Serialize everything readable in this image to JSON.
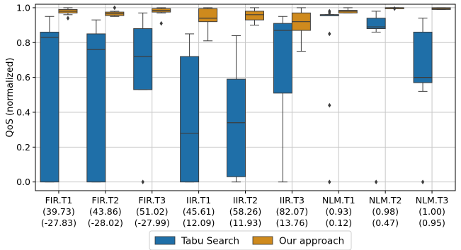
{
  "chart_data": {
    "type": "box",
    "ylabel": "QoS (normalized)",
    "ylim": [
      -0.05,
      1.02
    ],
    "yticks": [
      "0.0",
      "0.2",
      "0.4",
      "0.6",
      "0.8",
      "1.0"
    ],
    "grid": true,
    "legend_position": "bottom-center",
    "categories": [
      {
        "lines": [
          "FIR.T1",
          "(39.73)",
          "(-27.83)"
        ]
      },
      {
        "lines": [
          "FIR.T2",
          "(43.86)",
          "(-28.02)"
        ]
      },
      {
        "lines": [
          "FIR.T3",
          "(51.02)",
          "(-27.99)"
        ]
      },
      {
        "lines": [
          "IIR.T1",
          "(45.61)",
          "(12.09)"
        ]
      },
      {
        "lines": [
          "IIR.T2",
          "(58.26)",
          "(11.93)"
        ]
      },
      {
        "lines": [
          "IIR.T3",
          "(82.07)",
          "(13.76)"
        ]
      },
      {
        "lines": [
          "NLM.T1",
          "(0.93)",
          "(0.12)"
        ]
      },
      {
        "lines": [
          "NLM.T2",
          "(0.98)",
          "(0.47)"
        ]
      },
      {
        "lines": [
          "NLM.T3",
          "(1.00)",
          "(0.95)"
        ]
      }
    ],
    "series": [
      {
        "name": "Tabu Search",
        "color": "#1f6fa8",
        "boxes": [
          {
            "wlo": 0.0,
            "q1": 0.0,
            "med": 0.83,
            "q3": 0.86,
            "whi": 0.95,
            "fliers": []
          },
          {
            "wlo": 0.0,
            "q1": 0.0,
            "med": 0.76,
            "q3": 0.85,
            "whi": 0.93,
            "fliers": []
          },
          {
            "wlo": 0.53,
            "q1": 0.53,
            "med": 0.72,
            "q3": 0.88,
            "whi": 0.97,
            "fliers": [
              0.0
            ]
          },
          {
            "wlo": 0.0,
            "q1": 0.0,
            "med": 0.28,
            "q3": 0.72,
            "whi": 0.85,
            "fliers": []
          },
          {
            "wlo": 0.0,
            "q1": 0.03,
            "med": 0.34,
            "q3": 0.59,
            "whi": 0.84,
            "fliers": []
          },
          {
            "wlo": 0.0,
            "q1": 0.51,
            "med": 0.87,
            "q3": 0.91,
            "whi": 0.95,
            "fliers": []
          },
          {
            "wlo": 0.96,
            "q1": 0.96,
            "med": 0.96,
            "q3": 0.96,
            "whi": 0.96,
            "fliers": [
              0.0,
              0.44,
              0.85,
              0.97,
              0.98
            ]
          },
          {
            "wlo": 0.86,
            "q1": 0.88,
            "med": 0.89,
            "q3": 0.94,
            "whi": 0.98,
            "fliers": [
              0.0
            ]
          },
          {
            "wlo": 0.52,
            "q1": 0.57,
            "med": 0.6,
            "q3": 0.86,
            "whi": 0.94,
            "fliers": [
              0.0
            ]
          }
        ]
      },
      {
        "name": "Our approach",
        "color": "#cf8a1d",
        "boxes": [
          {
            "wlo": 0.96,
            "q1": 0.97,
            "med": 0.98,
            "q3": 0.99,
            "whi": 1.0,
            "fliers": [
              0.94
            ]
          },
          {
            "wlo": 0.95,
            "q1": 0.955,
            "med": 0.965,
            "q3": 0.975,
            "whi": 0.98,
            "fliers": [
              1.0
            ]
          },
          {
            "wlo": 0.97,
            "q1": 0.975,
            "med": 0.985,
            "q3": 0.995,
            "whi": 1.0,
            "fliers": [
              0.91
            ]
          },
          {
            "wlo": 0.81,
            "q1": 0.92,
            "med": 0.94,
            "q3": 0.995,
            "whi": 1.0,
            "fliers": []
          },
          {
            "wlo": 0.9,
            "q1": 0.93,
            "med": 0.96,
            "q3": 0.98,
            "whi": 1.0,
            "fliers": []
          },
          {
            "wlo": 0.75,
            "q1": 0.87,
            "med": 0.92,
            "q3": 0.97,
            "whi": 1.0,
            "fliers": []
          },
          {
            "wlo": 0.97,
            "q1": 0.97,
            "med": 0.98,
            "q3": 0.985,
            "whi": 1.0,
            "fliers": []
          },
          {
            "wlo": 1.0,
            "q1": 1.0,
            "med": 1.0,
            "q3": 1.0,
            "whi": 1.0,
            "fliers": [
              0.995
            ]
          },
          {
            "wlo": 0.99,
            "q1": 0.99,
            "med": 0.995,
            "q3": 1.0,
            "whi": 1.0,
            "fliers": []
          }
        ]
      }
    ]
  }
}
